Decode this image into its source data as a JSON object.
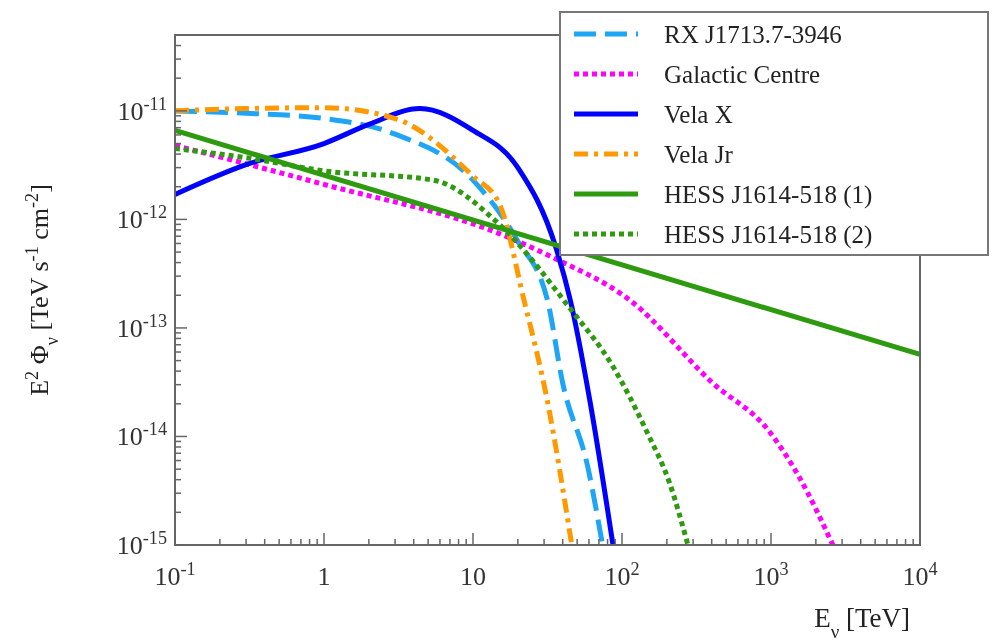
{
  "chart_data": {
    "type": "line",
    "xlabel": "E$_{ν}$ [TeV]",
    "ylabel": "E$^{2}$ Φ$_{ν}$ [TeV s$^{-1}$ cm$^{-2}$]",
    "log": "xy",
    "grid": false,
    "legend": "top right",
    "xlim": [
      0.1,
      10000
    ],
    "ylim": [
      1e-15,
      5e-11
    ],
    "xticks": [
      {
        "value": 0.1,
        "label": "10$^{-1}$"
      },
      1,
      10,
      {
        "value": 100,
        "label": "10$^{2}$"
      },
      {
        "value": 1000,
        "label": "10$^{3}$"
      },
      {
        "value": 10000,
        "label": "10$^{4}$"
      },
      {
        "value": 0.2,
        "label": null
      },
      {
        "value": 0.3,
        "label": null
      },
      {
        "value": 0.4,
        "label": null
      },
      {
        "value": 0.5,
        "label": null
      },
      {
        "value": 0.6,
        "label": null
      },
      {
        "value": 0.7,
        "label": null
      },
      {
        "value": 0.8,
        "label": null
      },
      {
        "value": 0.9,
        "label": null
      },
      {
        "value": 2,
        "label": null
      },
      {
        "value": 3,
        "label": null
      },
      {
        "value": 4,
        "label": null
      },
      {
        "value": 5,
        "label": null
      },
      {
        "value": 6,
        "label": null
      },
      {
        "value": 7,
        "label": null
      },
      {
        "value": 8,
        "label": null
      },
      {
        "value": 9,
        "label": null
      },
      {
        "value": 20,
        "label": null
      },
      {
        "value": 30,
        "label": null
      },
      {
        "value": 40,
        "label": null
      },
      {
        "value": 50,
        "label": null
      },
      {
        "value": 60,
        "label": null
      },
      {
        "value": 70,
        "label": null
      },
      {
        "value": 80,
        "label": null
      },
      {
        "value": 90,
        "label": null
      },
      {
        "value": 200,
        "label": null
      },
      {
        "value": 300,
        "label": null
      },
      {
        "value": 400,
        "label": null
      },
      {
        "value": 500,
        "label": null
      },
      {
        "value": 600,
        "label": null
      },
      {
        "value": 700,
        "label": null
      },
      {
        "value": 800,
        "label": null
      },
      {
        "value": 900,
        "label": null
      },
      {
        "value": 2000,
        "label": null
      },
      {
        "value": 3000,
        "label": null
      },
      {
        "value": 4000,
        "label": null
      },
      {
        "value": 5000,
        "label": null
      },
      {
        "value": 6000,
        "label": null
      },
      {
        "value": 7000,
        "label": null
      },
      {
        "value": 8000,
        "label": null
      },
      {
        "value": 9000,
        "label": null
      }
    ],
    "yticks": [
      {
        "value": 1e-15,
        "label": "10$^{-15}$"
      },
      {
        "value": 1e-14,
        "label": "10$^{-14}$"
      },
      {
        "value": 1e-13,
        "label": "10$^{-13}$"
      },
      {
        "value": 1e-12,
        "label": "10$^{-12}$"
      },
      {
        "value": 1e-11,
        "label": "10$^{-11}$"
      },
      {
        "value": 2e-15,
        "label": null
      },
      {
        "value": 3e-15,
        "label": null
      },
      {
        "value": 4e-15,
        "label": null
      },
      {
        "value": 5e-15,
        "label": null
      },
      {
        "value": 6e-15,
        "label": null
      },
      {
        "value": 7e-15,
        "label": null
      },
      {
        "value": 8e-15,
        "label": null
      },
      {
        "value": 9e-15,
        "label": null
      },
      {
        "value": 2e-14,
        "label": null
      },
      {
        "value": 3e-14,
        "label": null
      },
      {
        "value": 4e-14,
        "label": null
      },
      {
        "value": 5e-14,
        "label": null
      },
      {
        "value": 6e-14,
        "label": null
      },
      {
        "value": 7e-14,
        "label": null
      },
      {
        "value": 8e-14,
        "label": null
      },
      {
        "value": 9e-14,
        "label": null
      },
      {
        "value": 2e-13,
        "label": null
      },
      {
        "value": 3e-13,
        "label": null
      },
      {
        "value": 4e-13,
        "label": null
      },
      {
        "value": 5e-13,
        "label": null
      },
      {
        "value": 6e-13,
        "label": null
      },
      {
        "value": 7e-13,
        "label": null
      },
      {
        "value": 8e-13,
        "label": null
      },
      {
        "value": 9e-13,
        "label": null
      },
      {
        "value": 2e-12,
        "label": null
      },
      {
        "value": 3e-12,
        "label": null
      },
      {
        "value": 4e-12,
        "label": null
      },
      {
        "value": 5e-12,
        "label": null
      },
      {
        "value": 6e-12,
        "label": null
      },
      {
        "value": 7e-12,
        "label": null
      },
      {
        "value": 8e-12,
        "label": null
      },
      {
        "value": 9e-12,
        "label": null
      },
      {
        "value": 2e-11,
        "label": null
      },
      {
        "value": 3e-11,
        "label": null
      },
      {
        "value": 4e-11,
        "label": null
      }
    ],
    "series": [
      {
        "name": "RX J1713.7-3946",
        "color": "#1fa5f5",
        "line_style": "dashed",
        "x": [
          0.1,
          0.3,
          1,
          3,
          10,
          20,
          31.6,
          40,
          59,
          74
        ],
        "values": [
          1e-11,
          9.5e-12,
          8.5e-12,
          6.1e-12,
          2.3e-12,
          6.3e-13,
          1.8e-13,
          3.1e-14,
          5.2e-15,
          1e-15
        ]
      },
      {
        "name": "Galactic Centre",
        "color": "#ff00ff",
        "line_style": "dotted",
        "x": [
          0.1,
          1,
          15,
          35,
          113,
          407,
          980,
          1550,
          2600
        ],
        "values": [
          4.8e-12,
          2.1e-12,
          7.4e-13,
          4.4e-13,
          1.8e-13,
          3.1e-14,
          1.1e-14,
          4.2e-15,
          1e-15
        ]
      },
      {
        "name": "Vela X",
        "color": "#0000ff",
        "line_style": "solid",
        "x": [
          0.1,
          0.3,
          1,
          2,
          4.4,
          10,
          20,
          36,
          45,
          61,
          87
        ],
        "values": [
          1.7e-12,
          3.2e-12,
          5e-12,
          7.5e-12,
          1.05e-11,
          6.6e-12,
          3e-12,
          5.5e-13,
          1.8e-13,
          2.1e-14,
          1e-15
        ]
      },
      {
        "name": "Vela Jr",
        "color": "#ff9900",
        "line_style": "dashdot",
        "x": [
          0.1,
          0.3,
          1,
          3,
          10,
          15,
          22,
          31.6,
          46
        ],
        "values": [
          1e-11,
          1.05e-11,
          1.07e-11,
          8.5e-12,
          2.5e-12,
          1.4e-12,
          1.8e-13,
          2.1e-14,
          1e-15
        ]
      },
      {
        "name": "HESS J1614-518 (1)",
        "color": "#2e9a0f",
        "line_style": "solid",
        "x": [
          0.1,
          10000
        ],
        "values": [
          6.6e-12,
          5.7e-14
        ]
      },
      {
        "name": "HESS J1614-518 (2)",
        "color": "#2e9a0f",
        "line_style": "dotted",
        "x": [
          0.1,
          0.3,
          1,
          5.4,
          15,
          45,
          87,
          147,
          209,
          277
        ],
        "values": [
          4.5e-12,
          3.7e-12,
          2.8e-12,
          2.3e-12,
          9e-13,
          1.5e-13,
          4.4e-14,
          1.1e-14,
          3.7e-15,
          1e-15
        ]
      }
    ]
  }
}
